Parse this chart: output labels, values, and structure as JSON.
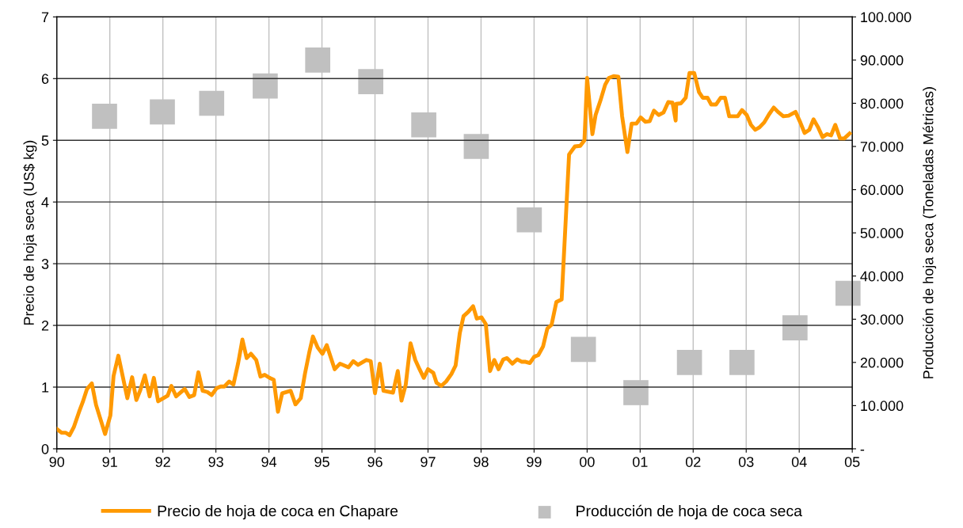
{
  "chart_data": {
    "type": "line",
    "ylabel": "Precio de hoja seca (US$ kg)",
    "y2label": "Producción de hoja seca (Toneladas Métricas)",
    "xlim": [
      1990,
      2005
    ],
    "xticks": [
      {
        "value": 1990,
        "label": "90"
      },
      {
        "value": 1991,
        "label": "91"
      },
      {
        "value": 1992,
        "label": "92"
      },
      {
        "value": 1993,
        "label": "93"
      },
      {
        "value": 1994,
        "label": "94"
      },
      {
        "value": 1995,
        "label": "95"
      },
      {
        "value": 1996,
        "label": "96"
      },
      {
        "value": 1997,
        "label": "97"
      },
      {
        "value": 1998,
        "label": "98"
      },
      {
        "value": 1999,
        "label": "99"
      },
      {
        "value": 2000,
        "label": "00"
      },
      {
        "value": 2001,
        "label": "01"
      },
      {
        "value": 2002,
        "label": "02"
      },
      {
        "value": 2003,
        "label": "03"
      },
      {
        "value": 2004,
        "label": "04"
      },
      {
        "value": 2005,
        "label": "05"
      }
    ],
    "ylim": [
      0,
      7
    ],
    "yticks": [
      0,
      1,
      2,
      3,
      4,
      5,
      6,
      7
    ],
    "y2lim": [
      0,
      100000
    ],
    "y2ticks": [
      {
        "value": 0,
        "label": "-"
      },
      {
        "value": 10000,
        "label": "10.000"
      },
      {
        "value": 20000,
        "label": "20.000"
      },
      {
        "value": 30000,
        "label": "30.000"
      },
      {
        "value": 40000,
        "label": "40.000"
      },
      {
        "value": 50000,
        "label": "50.000"
      },
      {
        "value": 60000,
        "label": "60.000"
      },
      {
        "value": 70000,
        "label": "70.000"
      },
      {
        "value": 80000,
        "label": "80.000"
      },
      {
        "value": 90000,
        "label": "90.000"
      },
      {
        "value": 100000,
        "label": "100.000"
      }
    ],
    "grid": true,
    "legend": "bottom",
    "series": [
      {
        "name": "Precio de hoja de coca en Chapare",
        "color": "#ff9900",
        "marker": "none",
        "line_style": "solid",
        "x": [
          1990.0,
          1990.09,
          1990.17,
          1990.24,
          1990.32,
          1990.42,
          1990.49,
          1990.57,
          1990.66,
          1990.74,
          1990.91,
          1991.01,
          1991.07,
          1991.16,
          1991.33,
          1991.42,
          1991.5,
          1991.57,
          1991.66,
          1991.75,
          1991.83,
          1991.91,
          1992.09,
          1992.16,
          1992.25,
          1992.41,
          1992.5,
          1992.59,
          1992.67,
          1992.75,
          1992.84,
          1992.92,
          1993.01,
          1993.09,
          1993.16,
          1993.25,
          1993.33,
          1993.42,
          1993.5,
          1993.58,
          1993.66,
          1993.76,
          1993.84,
          1993.92,
          1994.01,
          1994.09,
          1994.17,
          1994.25,
          1994.41,
          1994.5,
          1994.6,
          1994.68,
          1994.76,
          1994.83,
          1994.92,
          1995.01,
          1995.09,
          1995.24,
          1995.34,
          1995.5,
          1995.59,
          1995.68,
          1995.84,
          1995.92,
          1996.0,
          1996.09,
          1996.16,
          1996.34,
          1996.43,
          1996.5,
          1996.58,
          1996.67,
          1996.76,
          1996.84,
          1996.92,
          1997.0,
          1997.1,
          1997.16,
          1997.25,
          1997.34,
          1997.44,
          1997.52,
          1997.6,
          1997.67,
          1997.76,
          1997.85,
          1997.92,
          1998.01,
          1998.09,
          1998.17,
          1998.25,
          1998.33,
          1998.42,
          1998.49,
          1998.59,
          1998.68,
          1998.77,
          1998.84,
          1998.92,
          1999.0,
          1999.08,
          1999.17,
          1999.25,
          1999.33,
          1999.42,
          1999.52,
          1999.66,
          1999.77,
          1999.87,
          1999.95,
          2000.0,
          2000.1,
          2000.16,
          2000.25,
          2000.34,
          2000.41,
          2000.5,
          2000.59,
          2000.66,
          2000.76,
          2000.84,
          2000.93,
          2001.01,
          2001.1,
          2001.18,
          2001.26,
          2001.35,
          2001.44,
          2001.53,
          2001.61,
          2001.67,
          2001.68,
          2001.77,
          2001.86,
          2001.93,
          2002.02,
          2002.11,
          2002.18,
          2002.27,
          2002.34,
          2002.43,
          2002.52,
          2002.6,
          2002.68,
          2002.84,
          2002.92,
          2003.01,
          2003.09,
          2003.17,
          2003.25,
          2003.34,
          2003.43,
          2003.52,
          2003.6,
          2003.7,
          2003.8,
          2003.93,
          2004.02,
          2004.1,
          2004.19,
          2004.27,
          2004.35,
          2004.44,
          2004.52,
          2004.6,
          2004.68,
          2004.77,
          2004.85,
          2004.95
        ],
        "values": [
          0.32,
          0.26,
          0.26,
          0.22,
          0.35,
          0.6,
          0.76,
          0.97,
          1.06,
          0.71,
          0.24,
          0.54,
          1.18,
          1.51,
          0.82,
          1.16,
          0.79,
          0.94,
          1.19,
          0.85,
          1.15,
          0.77,
          0.86,
          1.02,
          0.85,
          0.97,
          0.84,
          0.87,
          1.24,
          0.94,
          0.92,
          0.87,
          0.98,
          1.01,
          1.01,
          1.09,
          1.04,
          1.39,
          1.77,
          1.47,
          1.54,
          1.44,
          1.17,
          1.2,
          1.15,
          1.12,
          0.6,
          0.9,
          0.94,
          0.72,
          0.82,
          1.22,
          1.56,
          1.82,
          1.64,
          1.54,
          1.68,
          1.29,
          1.38,
          1.32,
          1.42,
          1.36,
          1.44,
          1.42,
          0.9,
          1.38,
          0.94,
          0.91,
          1.26,
          0.78,
          1.04,
          1.71,
          1.44,
          1.29,
          1.15,
          1.29,
          1.23,
          1.07,
          1.02,
          1.09,
          1.21,
          1.35,
          1.88,
          2.15,
          2.22,
          2.31,
          2.11,
          2.13,
          2.02,
          1.26,
          1.44,
          1.29,
          1.45,
          1.47,
          1.38,
          1.45,
          1.41,
          1.41,
          1.39,
          1.49,
          1.52,
          1.66,
          1.95,
          2.01,
          2.38,
          2.42,
          4.77,
          4.9,
          4.91,
          5.0,
          6.01,
          5.1,
          5.41,
          5.64,
          5.9,
          6.01,
          6.04,
          6.03,
          5.39,
          4.81,
          5.27,
          5.27,
          5.37,
          5.3,
          5.31,
          5.48,
          5.41,
          5.45,
          5.62,
          5.61,
          5.32,
          5.59,
          5.6,
          5.69,
          6.09,
          6.09,
          5.78,
          5.69,
          5.69,
          5.58,
          5.58,
          5.69,
          5.69,
          5.39,
          5.39,
          5.49,
          5.41,
          5.25,
          5.17,
          5.21,
          5.29,
          5.42,
          5.53,
          5.46,
          5.39,
          5.4,
          5.46,
          5.29,
          5.12,
          5.17,
          5.34,
          5.22,
          5.05,
          5.1,
          5.08,
          5.25,
          5.03,
          5.03,
          5.11
        ]
      },
      {
        "name": "Producción de hoja de coca seca",
        "type": "scatter",
        "axis": "y2",
        "color": "#c0c0c0",
        "marker": "square",
        "x": [
          1990.9,
          1991.99,
          1992.92,
          1993.93,
          1994.92,
          1995.92,
          1996.92,
          1997.91,
          1998.91,
          1999.93,
          2000.92,
          2001.93,
          2002.92,
          2003.92,
          2004.92
        ],
        "values": [
          77000,
          78000,
          80000,
          84000,
          90000,
          85000,
          75000,
          70000,
          53000,
          23000,
          13000,
          20000,
          20000,
          28000,
          36000
        ]
      }
    ]
  }
}
